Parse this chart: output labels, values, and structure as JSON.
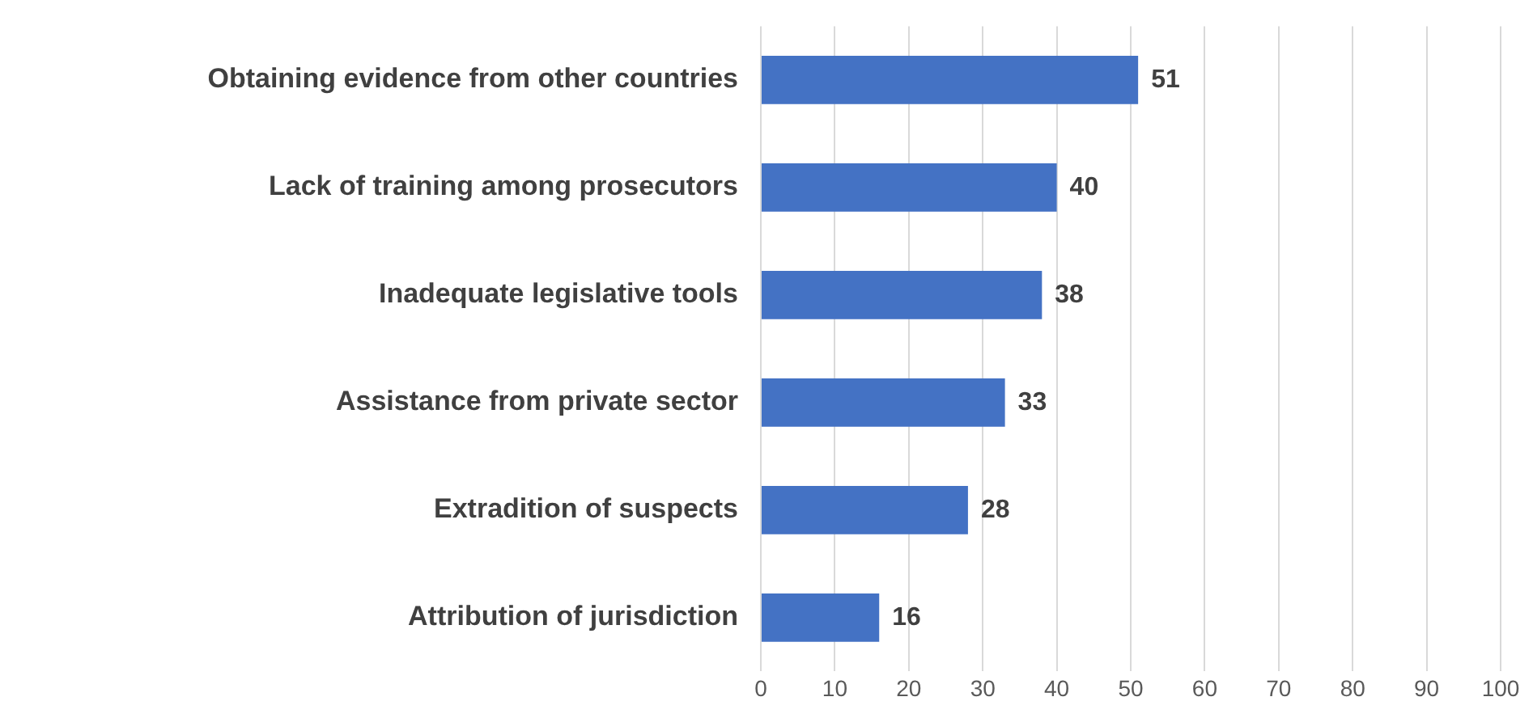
{
  "chart_data": {
    "type": "bar",
    "orientation": "horizontal",
    "categories": [
      "Obtaining evidence from other countries",
      "Lack of training among prosecutors",
      "Inadequate legislative tools",
      "Assistance from private sector",
      "Extradition of suspects",
      "Attribution of jurisdiction"
    ],
    "values": [
      51,
      40,
      38,
      33,
      28,
      16
    ],
    "color": "#4472c4",
    "xlim": [
      0,
      100
    ],
    "xticks": [
      0,
      10,
      20,
      30,
      40,
      50,
      60,
      70,
      80,
      90,
      100
    ],
    "grid": "x",
    "data_labels": true,
    "legend": false
  }
}
